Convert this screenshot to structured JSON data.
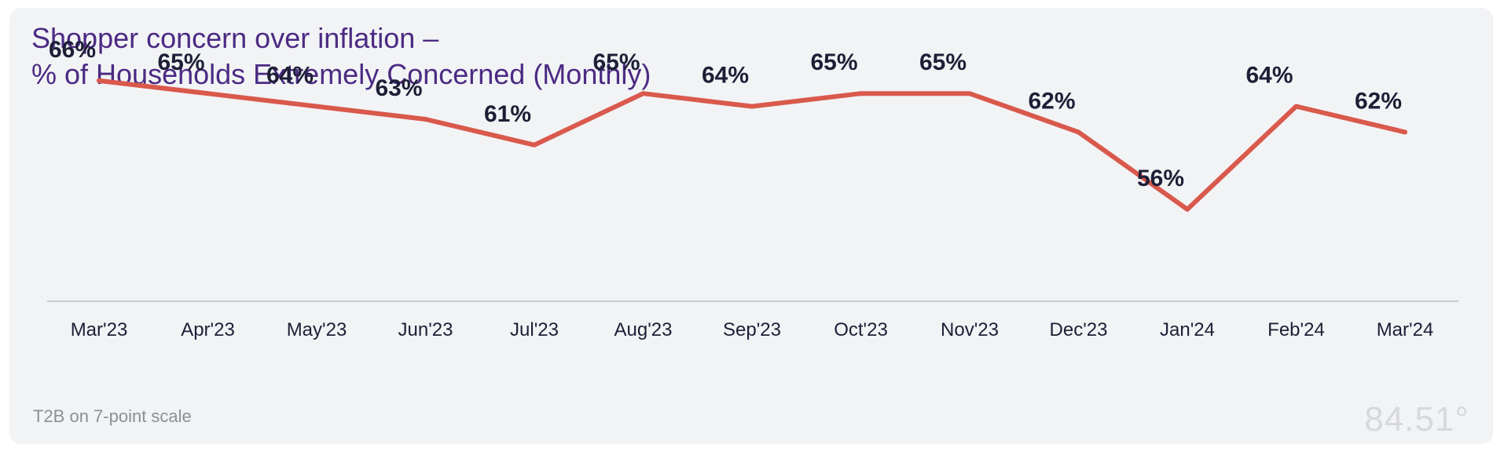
{
  "chart_data": {
    "type": "line",
    "title": [
      "Shopper concern over inflation –",
      "% of Households Extremely Concerned (Monthly)"
    ],
    "categories": [
      "Mar'23",
      "Apr'23",
      "May'23",
      "Jun'23",
      "Jul'23",
      "Aug'23",
      "Sep'23",
      "Oct'23",
      "Nov'23",
      "Dec'23",
      "Jan'24",
      "Feb'24",
      "Mar'24"
    ],
    "series": [
      {
        "name": "% of Households Extremely Concerned",
        "values": [
          66,
          65,
          64,
          63,
          61,
          65,
          64,
          65,
          65,
          62,
          56,
          64,
          62
        ]
      }
    ],
    "data_labels": [
      "66%",
      "65%",
      "64%",
      "63%",
      "61%",
      "65%",
      "64%",
      "65%",
      "65%",
      "62%",
      "56%",
      "64%",
      "62%"
    ],
    "xlabel": "",
    "ylabel": "",
    "ylim": [
      48,
      68
    ],
    "grid": false,
    "legend": "none",
    "line_color": "#d9594c",
    "axis_color": "#c9ccd2"
  },
  "footnote": "T2B on 7-point scale",
  "logo_text": "84.51°",
  "colors": {
    "title": "#4b2a83",
    "background": "#f2f3f5"
  }
}
